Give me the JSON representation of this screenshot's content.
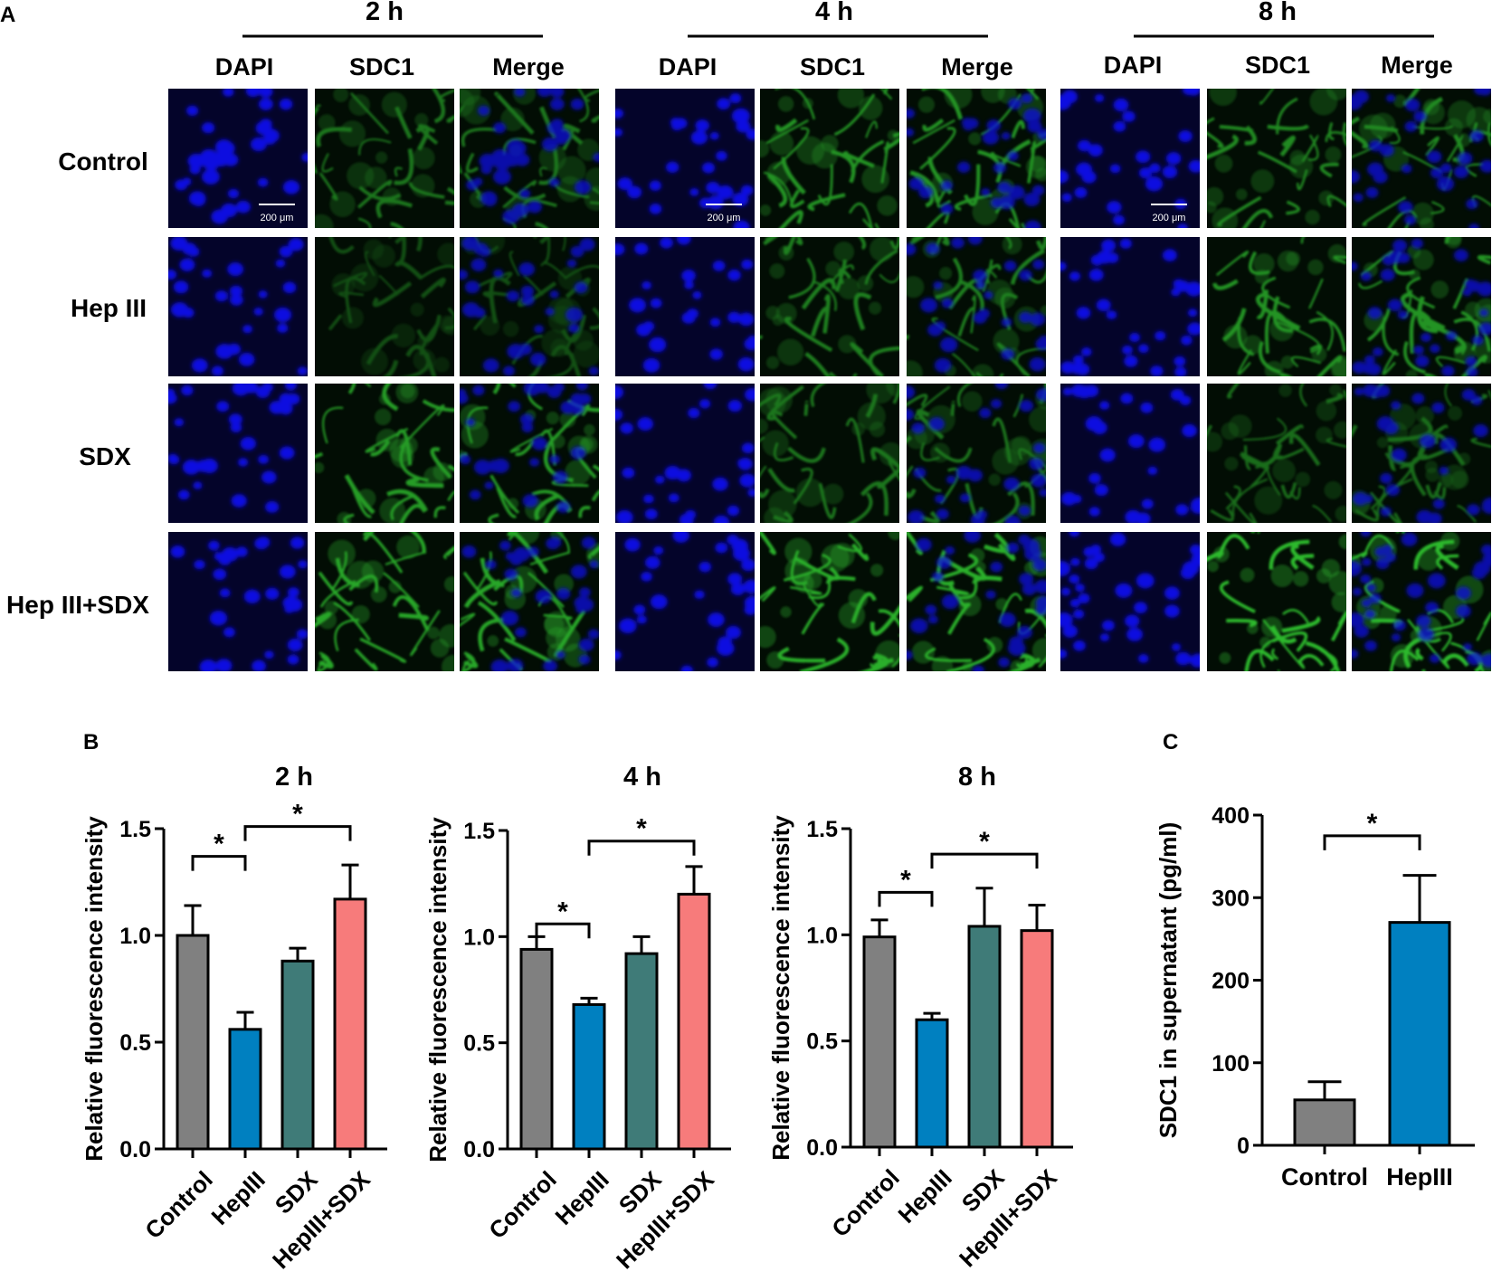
{
  "panel_a": {
    "letter": "A",
    "time_points": [
      "2 h",
      "4 h",
      "8 h"
    ],
    "channels": [
      "DAPI",
      "SDC1",
      "Merge"
    ],
    "rows": [
      "Control",
      "Hep III",
      "SDX",
      "Hep III+SDX"
    ],
    "scale_bar_label": "200 μm"
  },
  "panel_b": {
    "letter": "B"
  },
  "panel_c": {
    "letter": "C"
  },
  "colors": {
    "Control": "#808080",
    "HepIII": "#0080c0",
    "SDX": "#3f7b78",
    "HepIII+SDX": "#f77b7b",
    "dapi": "#1010e0",
    "sdc1": "#33cc33"
  },
  "chart_data": [
    {
      "type": "bar",
      "title": "2 h",
      "ylabel": "Relative fluorescence intensity",
      "ylim": [
        0,
        1.5
      ],
      "yticks": [
        "0.0",
        "0.5",
        "1.0",
        "1.5"
      ],
      "categories": [
        "Control",
        "HepIII",
        "SDX",
        "HepIII+SDX"
      ],
      "values": [
        1.0,
        0.56,
        0.88,
        1.17
      ],
      "errors": [
        0.14,
        0.08,
        0.06,
        0.16
      ],
      "significance": [
        {
          "from": "Control",
          "to": "HepIII",
          "level": 1.37,
          "label": "*"
        },
        {
          "from": "HepIII",
          "to": "HepIII+SDX",
          "level": 1.51,
          "label": "*"
        }
      ]
    },
    {
      "type": "bar",
      "title": "4 h",
      "ylabel": "Relative fluorescence intensity",
      "ylim": [
        0,
        1.5
      ],
      "yticks": [
        "0.0",
        "0.5",
        "1.0",
        "1.5"
      ],
      "categories": [
        "Control",
        "HepIII",
        "SDX",
        "HepIII+SDX"
      ],
      "values": [
        0.94,
        0.68,
        0.92,
        1.2
      ],
      "errors": [
        0.06,
        0.03,
        0.08,
        0.13
      ],
      "significance": [
        {
          "from": "Control",
          "to": "HepIII",
          "level": 1.06,
          "label": "*"
        },
        {
          "from": "HepIII",
          "to": "HepIII+SDX",
          "level": 1.45,
          "label": "*"
        }
      ]
    },
    {
      "type": "bar",
      "title": "8 h",
      "ylabel": "Relative fluorescence intensity",
      "ylim": [
        0,
        1.5
      ],
      "yticks": [
        "0.0",
        "0.5",
        "1.0",
        "1.5"
      ],
      "categories": [
        "Control",
        "HepIII",
        "SDX",
        "HepIII+SDX"
      ],
      "values": [
        0.99,
        0.6,
        1.04,
        1.02
      ],
      "errors": [
        0.08,
        0.03,
        0.18,
        0.12
      ],
      "significance": [
        {
          "from": "Control",
          "to": "HepIII",
          "level": 1.2,
          "label": "*"
        },
        {
          "from": "HepIII",
          "to": "HepIII+SDX",
          "level": 1.38,
          "label": "*"
        }
      ]
    },
    {
      "type": "bar",
      "title": "",
      "ylabel": "SDC1 in supernatant (pg/ml)",
      "ylim": [
        0,
        400
      ],
      "yticks": [
        "0",
        "100",
        "200",
        "300",
        "400"
      ],
      "categories": [
        "Control",
        "HepIII"
      ],
      "values": [
        55,
        270
      ],
      "errors": [
        22,
        57
      ],
      "significance": [
        {
          "from": "Control",
          "to": "HepIII",
          "level": 375,
          "label": "*"
        }
      ]
    }
  ]
}
